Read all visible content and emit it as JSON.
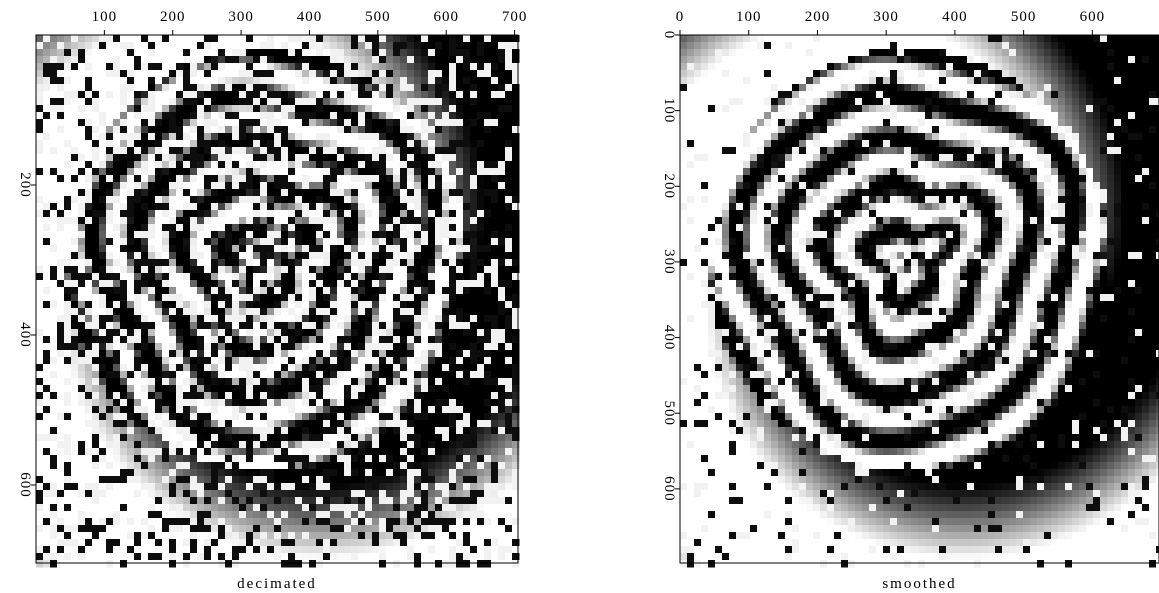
{
  "chart_data": [
    {
      "type": "heatmap",
      "xlabel": "decimated",
      "colormap": "gray",
      "xlim": [
        0,
        705
      ],
      "xticks": [
        100,
        200,
        300,
        400,
        500,
        600,
        700
      ],
      "ylim": [
        0,
        704
      ],
      "yticks": [
        200,
        400,
        600
      ]
    },
    {
      "type": "heatmap",
      "xlabel": "smoothed",
      "colormap": "gray",
      "xlim": [
        0,
        697
      ],
      "xticks": [
        0,
        100,
        200,
        300,
        400,
        500,
        600
      ],
      "ylim": [
        0,
        698
      ],
      "yticks": [
        0,
        100,
        200,
        300,
        400,
        500,
        600
      ]
    }
  ]
}
